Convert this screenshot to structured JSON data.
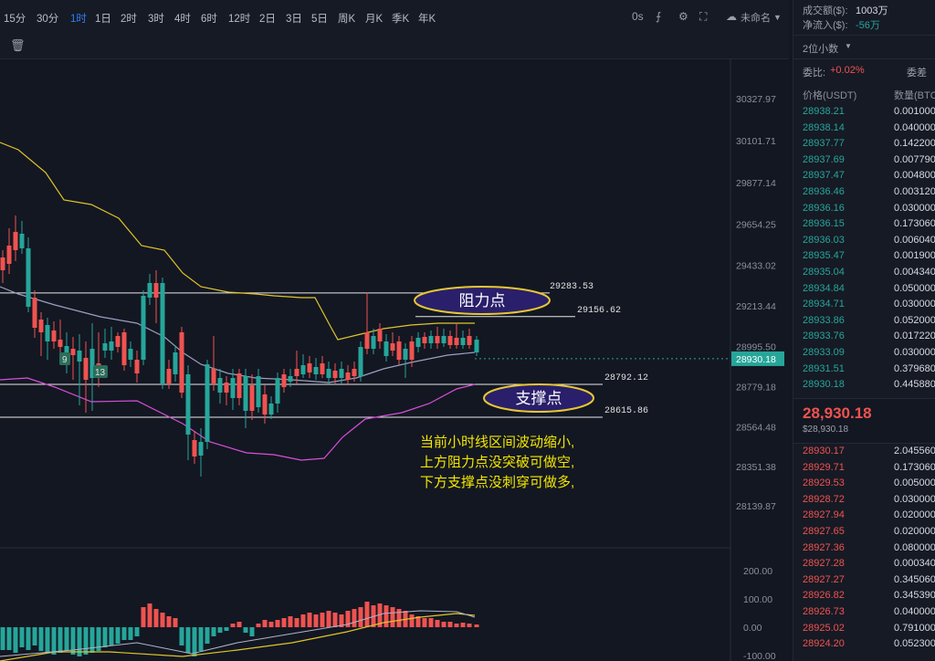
{
  "toolbar": {
    "timeframes": [
      "15分",
      "30分",
      "1时",
      "1日",
      "2时",
      "3时",
      "4时",
      "6时",
      "12时",
      "2日",
      "3日",
      "5日",
      "周K",
      "月K",
      "季K",
      "年K"
    ],
    "active_timeframe": "1时",
    "seconds_label": "0s",
    "layout_name": "未命名"
  },
  "price_axis": [
    "30327.97",
    "30101.71",
    "29877.14",
    "29654.25",
    "29433.02",
    "29213.44",
    "28995.50",
    "28779.18",
    "28564.48",
    "28351.38",
    "28139.87"
  ],
  "current_price_tag": "28930.18",
  "macd_axis": [
    "200.00",
    "100.00",
    "0.00",
    "-100.00"
  ],
  "lines": {
    "r1": "29283.53",
    "r2": "29156.62",
    "s1": "28792.12",
    "s2": "28615.86"
  },
  "labels": {
    "resistance": "阻力点",
    "support": "支撑点",
    "td9": "9",
    "td13": "13"
  },
  "annotation": [
    "当前小时线区间波动缩小,",
    "上方阻力点没突破可做空,",
    "下方支撑点没刺穿可做多,"
  ],
  "colors": {
    "up": "#26a69a",
    "down": "#ef5350",
    "upper_band": "#e0c52a",
    "lower_band": "#d84fd8",
    "middle_band": "#9aa0c0",
    "accent": "#2f7df6",
    "ann": "#f2e600"
  },
  "panel": {
    "volume_label": "成交额($):",
    "volume_value": "1003万",
    "inflow_label": "净流入($):",
    "inflow_value": "-56万",
    "precision": "2位小数",
    "ratio_label": "委比:",
    "ratio_value": "+0.02%",
    "diff_label": "委差",
    "col_price": "价格(USDT)",
    "col_qty": "数量(BTC)",
    "asks": [
      {
        "p": "28938.21",
        "q": "0.001000"
      },
      {
        "p": "28938.14",
        "q": "0.040000"
      },
      {
        "p": "28937.77",
        "q": "0.142200"
      },
      {
        "p": "28937.69",
        "q": "0.007790"
      },
      {
        "p": "28937.47",
        "q": "0.004800"
      },
      {
        "p": "28936.46",
        "q": "0.003120"
      },
      {
        "p": "28936.16",
        "q": "0.030000"
      },
      {
        "p": "28936.15",
        "q": "0.173060"
      },
      {
        "p": "28936.03",
        "q": "0.006040"
      },
      {
        "p": "28935.47",
        "q": "0.001900"
      },
      {
        "p": "28935.04",
        "q": "0.004340"
      },
      {
        "p": "28934.84",
        "q": "0.050000"
      },
      {
        "p": "28934.71",
        "q": "0.030000"
      },
      {
        "p": "28933.86",
        "q": "0.052000"
      },
      {
        "p": "28933.76",
        "q": "0.017220"
      },
      {
        "p": "28933.09",
        "q": "0.030000"
      },
      {
        "p": "28931.51",
        "q": "0.379680"
      },
      {
        "p": "28930.18",
        "q": "0.445880"
      }
    ],
    "mid_price": "28,930.18",
    "mid_sub": "$28,930.18",
    "bids": [
      {
        "p": "28930.17",
        "q": "2.045560"
      },
      {
        "p": "28929.71",
        "q": "0.173060"
      },
      {
        "p": "28929.53",
        "q": "0.005000"
      },
      {
        "p": "28928.72",
        "q": "0.030000"
      },
      {
        "p": "28927.94",
        "q": "0.020000"
      },
      {
        "p": "28927.65",
        "q": "0.020000"
      },
      {
        "p": "28927.36",
        "q": "0.080000"
      },
      {
        "p": "28927.28",
        "q": "0.000340"
      },
      {
        "p": "28927.27",
        "q": "0.345060"
      },
      {
        "p": "28926.82",
        "q": "0.345390"
      },
      {
        "p": "28926.73",
        "q": "0.040000"
      },
      {
        "p": "28925.02",
        "q": "0.791000"
      },
      {
        "p": "28924.20",
        "q": "0.052300"
      }
    ]
  }
}
